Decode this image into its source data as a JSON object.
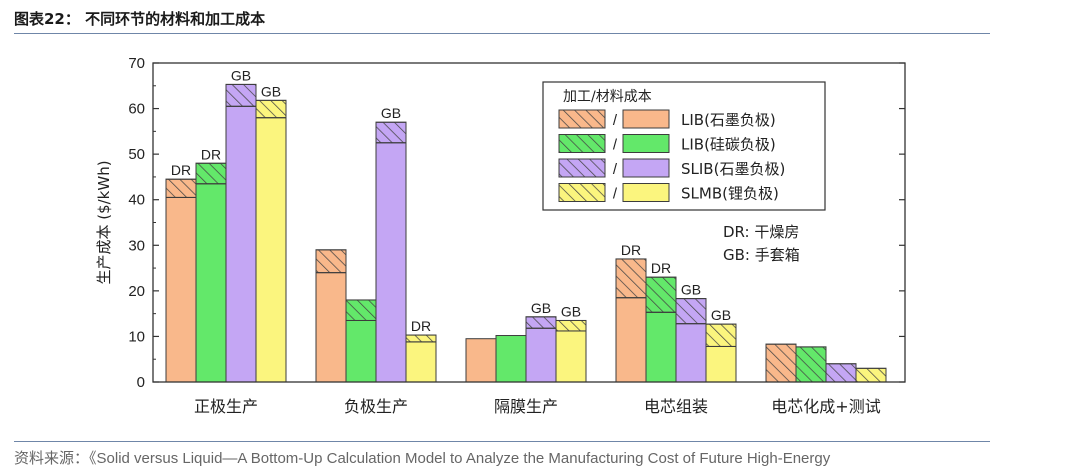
{
  "header": {
    "figure_title": "图表22： 不同环节的材料和加工成本"
  },
  "footer": {
    "source_prefix": "资料来源：",
    "source_text": "《Solid versus Liquid—A Bottom-Up Calculation Model to Analyze the Manufacturing Cost of Future High-Energy"
  },
  "colors": {
    "LIB_graphite": "#f9b88b",
    "LIB_silicon": "#63e86a",
    "SLIB_graphite": "#c4a6f4",
    "SLMB_lithium": "#fbf57e",
    "stroke": "#3d3d3d"
  },
  "chart_data": {
    "type": "bar",
    "stacked": true,
    "ylabel": "生产成本 ($/kWh)",
    "ylim": [
      0,
      70
    ],
    "yticks": [
      0,
      10,
      20,
      30,
      40,
      50,
      60,
      70
    ],
    "categories": [
      "正极生产",
      "负极生产",
      "隔膜生产",
      "电芯组装",
      "电芯化成+测试"
    ],
    "legend": {
      "title": "加工/材料成本",
      "position": "top-right",
      "separator": "/",
      "entries": [
        "LIB(石墨负极)",
        "LIB(硅碳负极)",
        "SLIB(石墨负极)",
        "SLMB(锂负极)"
      ]
    },
    "notes": [
      "DR: 干燥房",
      "GB: 手套箱"
    ],
    "series": [
      {
        "name": "LIB(石墨负极)",
        "color_key": "LIB_graphite",
        "material": [
          40.5,
          24,
          9.5,
          18.5,
          0
        ],
        "processing": [
          4,
          5,
          0,
          8.5,
          8.3
        ],
        "labels": [
          "DR",
          "",
          "",
          "DR",
          ""
        ]
      },
      {
        "name": "LIB(硅碳负极)",
        "color_key": "LIB_silicon",
        "material": [
          43.5,
          13.5,
          10.2,
          15.3,
          0
        ],
        "processing": [
          4.5,
          4.5,
          0,
          7.7,
          7.7
        ],
        "labels": [
          "DR",
          "",
          "",
          "DR",
          ""
        ]
      },
      {
        "name": "SLIB(石墨负极)",
        "color_key": "SLIB_graphite",
        "material": [
          60.5,
          52.5,
          11.8,
          12.8,
          0
        ],
        "processing": [
          4.8,
          4.5,
          2.5,
          5.5,
          4
        ],
        "labels": [
          "GB",
          "GB",
          "GB",
          "GB",
          ""
        ]
      },
      {
        "name": "SLMB(锂负极)",
        "color_key": "SLMB_lithium",
        "material": [
          58,
          8.8,
          11.2,
          7.8,
          0
        ],
        "processing": [
          3.8,
          1.5,
          2.3,
          4.9,
          3
        ],
        "labels": [
          "GB",
          "DR",
          "GB",
          "GB",
          ""
        ]
      }
    ]
  }
}
